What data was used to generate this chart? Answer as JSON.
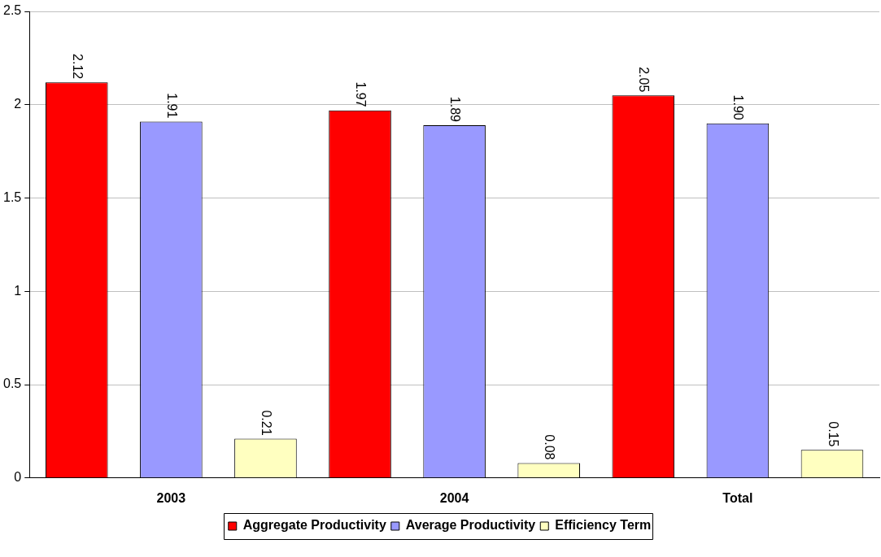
{
  "chart_data": {
    "type": "bar",
    "categories": [
      "2003",
      "2004",
      "Total"
    ],
    "series": [
      {
        "name": "Aggregate Productivity",
        "color": "#ff0000",
        "values": [
          2.12,
          1.97,
          2.05
        ],
        "value_labels": [
          "2.12",
          "1.97",
          "2.05"
        ]
      },
      {
        "name": "Average Productivity",
        "color": "#9999ff",
        "values": [
          1.91,
          1.89,
          1.9
        ],
        "value_labels": [
          "1.91",
          "1.89",
          "1.90"
        ]
      },
      {
        "name": "Efficiency Term",
        "color": "#ffffc0",
        "values": [
          0.21,
          0.08,
          0.15
        ],
        "value_labels": [
          "0.21",
          "0.08",
          "0.15"
        ]
      }
    ],
    "ylim": [
      0,
      2.5
    ],
    "yticks": [
      0,
      0.5,
      1,
      1.5,
      2,
      2.5
    ],
    "grid": "y",
    "legend": "bottom"
  }
}
